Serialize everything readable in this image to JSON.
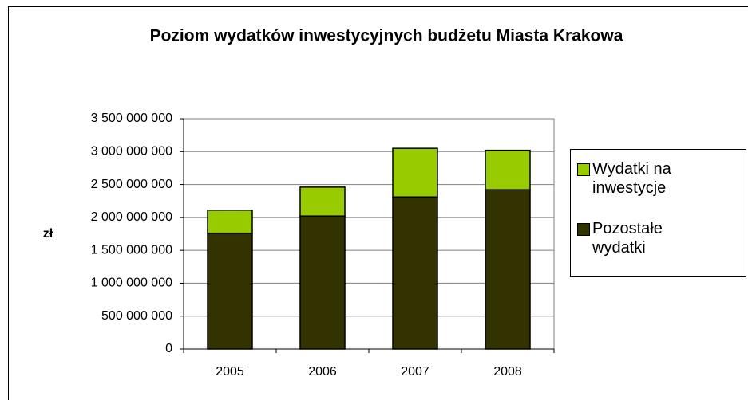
{
  "chart_data": {
    "type": "stacked_bar",
    "title": "Poziom wydatków inwestycyjnych budżetu Miasta Krakowa",
    "y_label": "zł",
    "categories": [
      "2005",
      "2006",
      "2007",
      "2008"
    ],
    "series": [
      {
        "name": "Pozostałe wydatki",
        "color": "#333300",
        "values": [
          1760000000,
          2020000000,
          2310000000,
          2420000000
        ]
      },
      {
        "name": "Wydatki na inwestycje",
        "color": "#99cc00",
        "values": [
          350000000,
          440000000,
          740000000,
          600000000
        ]
      }
    ],
    "ylim": [
      0,
      3500000000
    ],
    "yticks": [
      0,
      {
        "value": 500000000,
        "label": "500 000 000"
      },
      {
        "value": 1000000000,
        "label": "1 000 000 000"
      },
      {
        "value": 1500000000,
        "label": "1 500 000 000"
      },
      {
        "value": 2000000000,
        "label": "2 000 000 000"
      },
      {
        "value": 2500000000,
        "label": "2 500 000 000"
      },
      {
        "value": 3000000000,
        "label": "3 000 000 000"
      },
      {
        "value": 3500000000,
        "label": "3 500 000 000"
      }
    ],
    "grid": true,
    "legend": "right"
  }
}
